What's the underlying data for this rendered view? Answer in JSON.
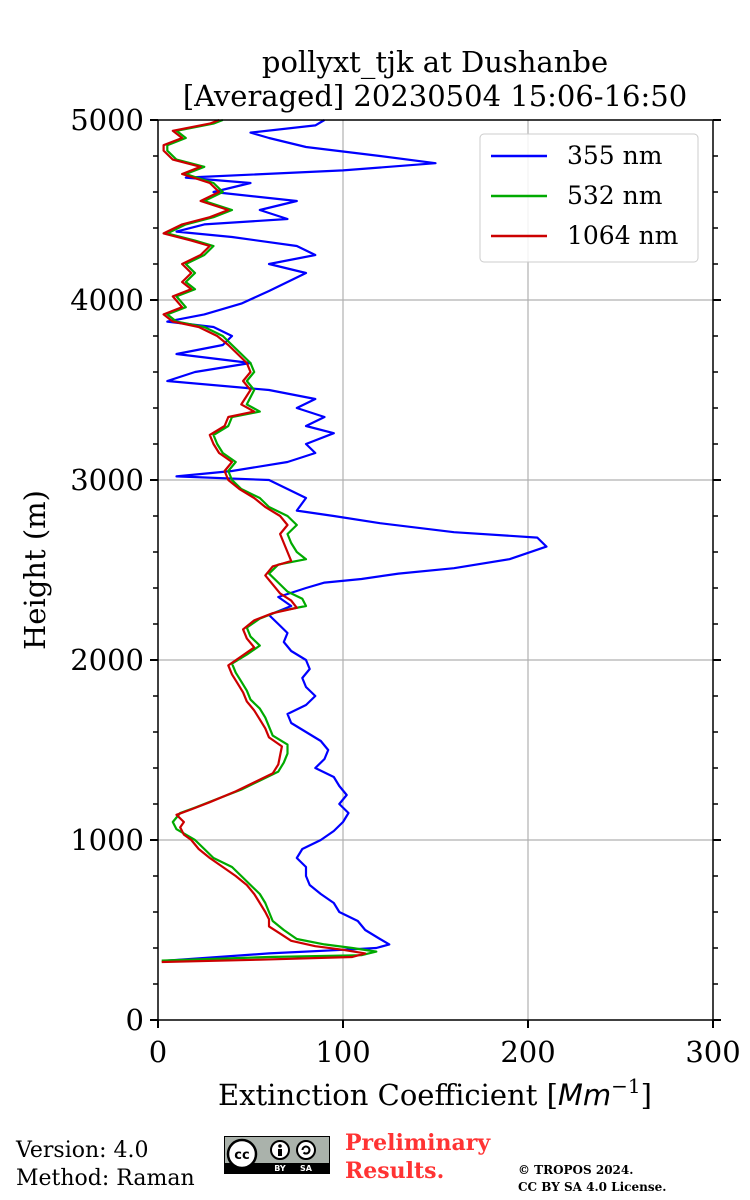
{
  "chart_data": {
    "type": "line",
    "title_line1": "pollyxt_tjk at Dushanbe",
    "title_line2": "[Averaged] 20230504 15:06-16:50",
    "xlabel": "Extinction Coefficient [Mm⁻¹]",
    "ylabel": "Height (m)",
    "xlim": [
      0,
      300
    ],
    "ylim": [
      0,
      5000
    ],
    "xticks": [
      0,
      100,
      200,
      300
    ],
    "yticks": [
      0,
      1000,
      2000,
      3000,
      4000,
      5000
    ],
    "grid": true,
    "legend_position": "top-right",
    "series": [
      {
        "name": "355 nm",
        "color": "#0000ff",
        "points": [
          [
            5,
            330
          ],
          [
            60,
            370
          ],
          [
            100,
            390
          ],
          [
            118,
            400
          ],
          [
            125,
            420
          ],
          [
            120,
            450
          ],
          [
            112,
            500
          ],
          [
            108,
            550
          ],
          [
            98,
            600
          ],
          [
            95,
            650
          ],
          [
            88,
            700
          ],
          [
            82,
            750
          ],
          [
            80,
            800
          ],
          [
            80,
            850
          ],
          [
            75,
            900
          ],
          [
            78,
            950
          ],
          [
            88,
            1000
          ],
          [
            95,
            1050
          ],
          [
            100,
            1100
          ],
          [
            103,
            1150
          ],
          [
            98,
            1200
          ],
          [
            102,
            1250
          ],
          [
            98,
            1300
          ],
          [
            95,
            1350
          ],
          [
            85,
            1400
          ],
          [
            90,
            1450
          ],
          [
            92,
            1500
          ],
          [
            88,
            1550
          ],
          [
            80,
            1600
          ],
          [
            72,
            1650
          ],
          [
            70,
            1700
          ],
          [
            80,
            1750
          ],
          [
            85,
            1800
          ],
          [
            80,
            1850
          ],
          [
            78,
            1900
          ],
          [
            82,
            1950
          ],
          [
            80,
            2000
          ],
          [
            72,
            2050
          ],
          [
            68,
            2100
          ],
          [
            70,
            2150
          ],
          [
            65,
            2200
          ],
          [
            60,
            2250
          ],
          [
            72,
            2300
          ],
          [
            65,
            2350
          ],
          [
            80,
            2400
          ],
          [
            90,
            2430
          ],
          [
            110,
            2450
          ],
          [
            130,
            2480
          ],
          [
            160,
            2510
          ],
          [
            190,
            2560
          ],
          [
            210,
            2630
          ],
          [
            205,
            2680
          ],
          [
            160,
            2710
          ],
          [
            120,
            2760
          ],
          [
            95,
            2800
          ],
          [
            75,
            2830
          ],
          [
            80,
            2900
          ],
          [
            70,
            2950
          ],
          [
            60,
            3000
          ],
          [
            10,
            3020
          ],
          [
            40,
            3050
          ],
          [
            70,
            3100
          ],
          [
            85,
            3150
          ],
          [
            80,
            3200
          ],
          [
            95,
            3260
          ],
          [
            80,
            3300
          ],
          [
            90,
            3350
          ],
          [
            75,
            3400
          ],
          [
            85,
            3450
          ],
          [
            60,
            3500
          ],
          [
            5,
            3550
          ],
          [
            20,
            3600
          ],
          [
            50,
            3650
          ],
          [
            10,
            3700
          ],
          [
            35,
            3750
          ],
          [
            40,
            3800
          ],
          [
            30,
            3850
          ],
          [
            5,
            3880
          ],
          [
            25,
            3920
          ],
          [
            45,
            3980
          ],
          [
            60,
            4050
          ],
          [
            70,
            4100
          ],
          [
            80,
            4150
          ],
          [
            60,
            4200
          ],
          [
            85,
            4250
          ],
          [
            75,
            4300
          ],
          [
            40,
            4350
          ],
          [
            10,
            4380
          ],
          [
            25,
            4420
          ],
          [
            70,
            4450
          ],
          [
            55,
            4500
          ],
          [
            75,
            4550
          ],
          [
            30,
            4600
          ],
          [
            50,
            4650
          ],
          [
            15,
            4680
          ],
          [
            100,
            4720
          ],
          [
            150,
            4760
          ],
          [
            120,
            4800
          ],
          [
            80,
            4850
          ],
          [
            60,
            4900
          ],
          [
            50,
            4930
          ],
          [
            85,
            4970
          ],
          [
            90,
            5000
          ]
        ]
      },
      {
        "name": "532 nm",
        "color": "#00aa00",
        "points": [
          [
            2,
            330
          ],
          [
            60,
            350
          ],
          [
            110,
            360
          ],
          [
            118,
            380
          ],
          [
            105,
            400
          ],
          [
            90,
            420
          ],
          [
            75,
            450
          ],
          [
            68,
            500
          ],
          [
            62,
            550
          ],
          [
            60,
            600
          ],
          [
            58,
            650
          ],
          [
            55,
            700
          ],
          [
            50,
            750
          ],
          [
            45,
            800
          ],
          [
            40,
            850
          ],
          [
            30,
            900
          ],
          [
            25,
            950
          ],
          [
            20,
            1000
          ],
          [
            15,
            1030
          ],
          [
            10,
            1060
          ],
          [
            8,
            1100
          ],
          [
            12,
            1150
          ],
          [
            20,
            1180
          ],
          [
            30,
            1220
          ],
          [
            45,
            1280
          ],
          [
            55,
            1330
          ],
          [
            65,
            1380
          ],
          [
            68,
            1430
          ],
          [
            70,
            1480
          ],
          [
            70,
            1530
          ],
          [
            62,
            1580
          ],
          [
            60,
            1630
          ],
          [
            58,
            1680
          ],
          [
            55,
            1730
          ],
          [
            50,
            1780
          ],
          [
            48,
            1830
          ],
          [
            45,
            1880
          ],
          [
            42,
            1930
          ],
          [
            40,
            1980
          ],
          [
            48,
            2030
          ],
          [
            55,
            2080
          ],
          [
            50,
            2130
          ],
          [
            48,
            2180
          ],
          [
            55,
            2230
          ],
          [
            65,
            2270
          ],
          [
            80,
            2300
          ],
          [
            78,
            2340
          ],
          [
            70,
            2380
          ],
          [
            65,
            2430
          ],
          [
            60,
            2480
          ],
          [
            65,
            2530
          ],
          [
            80,
            2560
          ],
          [
            75,
            2600
          ],
          [
            72,
            2650
          ],
          [
            70,
            2700
          ],
          [
            75,
            2750
          ],
          [
            70,
            2800
          ],
          [
            60,
            2850
          ],
          [
            55,
            2900
          ],
          [
            45,
            2950
          ],
          [
            40,
            3000
          ],
          [
            38,
            3050
          ],
          [
            42,
            3100
          ],
          [
            35,
            3150
          ],
          [
            32,
            3200
          ],
          [
            30,
            3250
          ],
          [
            38,
            3300
          ],
          [
            40,
            3350
          ],
          [
            55,
            3380
          ],
          [
            48,
            3420
          ],
          [
            52,
            3500
          ],
          [
            48,
            3550
          ],
          [
            52,
            3600
          ],
          [
            50,
            3650
          ],
          [
            45,
            3700
          ],
          [
            40,
            3750
          ],
          [
            35,
            3800
          ],
          [
            25,
            3850
          ],
          [
            10,
            3880
          ],
          [
            5,
            3920
          ],
          [
            15,
            3960
          ],
          [
            10,
            4020
          ],
          [
            20,
            4060
          ],
          [
            15,
            4100
          ],
          [
            20,
            4150
          ],
          [
            15,
            4200
          ],
          [
            25,
            4250
          ],
          [
            30,
            4300
          ],
          [
            20,
            4330
          ],
          [
            5,
            4370
          ],
          [
            15,
            4420
          ],
          [
            30,
            4460
          ],
          [
            40,
            4500
          ],
          [
            25,
            4550
          ],
          [
            35,
            4600
          ],
          [
            30,
            4650
          ],
          [
            15,
            4700
          ],
          [
            25,
            4740
          ],
          [
            10,
            4780
          ],
          [
            5,
            4830
          ],
          [
            5,
            4860
          ],
          [
            15,
            4900
          ],
          [
            10,
            4940
          ],
          [
            30,
            4980
          ],
          [
            35,
            5000
          ]
        ]
      },
      {
        "name": "1064 nm",
        "color": "#cc0000",
        "points": [
          [
            2,
            322
          ],
          [
            55,
            335
          ],
          [
            105,
            350
          ],
          [
            112,
            370
          ],
          [
            100,
            390
          ],
          [
            85,
            410
          ],
          [
            72,
            440
          ],
          [
            66,
            480
          ],
          [
            60,
            520
          ],
          [
            60,
            560
          ],
          [
            58,
            600
          ],
          [
            55,
            650
          ],
          [
            52,
            700
          ],
          [
            48,
            750
          ],
          [
            42,
            800
          ],
          [
            35,
            850
          ],
          [
            28,
            900
          ],
          [
            22,
            950
          ],
          [
            18,
            1000
          ],
          [
            14,
            1030
          ],
          [
            12,
            1070
          ],
          [
            14,
            1100
          ],
          [
            10,
            1140
          ],
          [
            18,
            1170
          ],
          [
            28,
            1210
          ],
          [
            42,
            1270
          ],
          [
            52,
            1320
          ],
          [
            62,
            1370
          ],
          [
            65,
            1420
          ],
          [
            66,
            1470
          ],
          [
            67,
            1520
          ],
          [
            60,
            1570
          ],
          [
            58,
            1620
          ],
          [
            55,
            1670
          ],
          [
            52,
            1720
          ],
          [
            48,
            1770
          ],
          [
            46,
            1820
          ],
          [
            43,
            1870
          ],
          [
            40,
            1920
          ],
          [
            38,
            1970
          ],
          [
            45,
            2020
          ],
          [
            52,
            2070
          ],
          [
            48,
            2120
          ],
          [
            46,
            2170
          ],
          [
            52,
            2220
          ],
          [
            62,
            2260
          ],
          [
            75,
            2290
          ],
          [
            72,
            2330
          ],
          [
            66,
            2370
          ],
          [
            62,
            2420
          ],
          [
            58,
            2470
          ],
          [
            62,
            2520
          ],
          [
            72,
            2550
          ],
          [
            70,
            2600
          ],
          [
            68,
            2650
          ],
          [
            66,
            2700
          ],
          [
            70,
            2750
          ],
          [
            66,
            2800
          ],
          [
            58,
            2850
          ],
          [
            52,
            2900
          ],
          [
            44,
            2950
          ],
          [
            38,
            3000
          ],
          [
            36,
            3050
          ],
          [
            40,
            3100
          ],
          [
            33,
            3150
          ],
          [
            30,
            3200
          ],
          [
            28,
            3250
          ],
          [
            36,
            3300
          ],
          [
            38,
            3350
          ],
          [
            52,
            3380
          ],
          [
            45,
            3420
          ],
          [
            50,
            3500
          ],
          [
            46,
            3550
          ],
          [
            50,
            3600
          ],
          [
            48,
            3650
          ],
          [
            43,
            3700
          ],
          [
            38,
            3750
          ],
          [
            32,
            3800
          ],
          [
            22,
            3850
          ],
          [
            8,
            3880
          ],
          [
            3,
            3920
          ],
          [
            13,
            3960
          ],
          [
            8,
            4020
          ],
          [
            18,
            4060
          ],
          [
            13,
            4100
          ],
          [
            18,
            4150
          ],
          [
            13,
            4200
          ],
          [
            23,
            4250
          ],
          [
            28,
            4300
          ],
          [
            18,
            4330
          ],
          [
            3,
            4370
          ],
          [
            13,
            4420
          ],
          [
            28,
            4460
          ],
          [
            38,
            4500
          ],
          [
            23,
            4550
          ],
          [
            33,
            4600
          ],
          [
            28,
            4650
          ],
          [
            13,
            4700
          ],
          [
            23,
            4740
          ],
          [
            8,
            4780
          ],
          [
            3,
            4830
          ],
          [
            3,
            4860
          ],
          [
            13,
            4900
          ],
          [
            8,
            4940
          ],
          [
            28,
            4980
          ],
          [
            33,
            5000
          ]
        ]
      }
    ]
  },
  "footer": {
    "version": "Version: 4.0",
    "method": "Method: Raman",
    "preliminary_line1": "Preliminary",
    "preliminary_line2": "Results.",
    "copyright_line1": "© TROPOS 2024.",
    "copyright_line2": "CC BY SA 4.0 License.",
    "cc_label": "cc",
    "cc_by": "BY",
    "cc_sa": "SA"
  }
}
